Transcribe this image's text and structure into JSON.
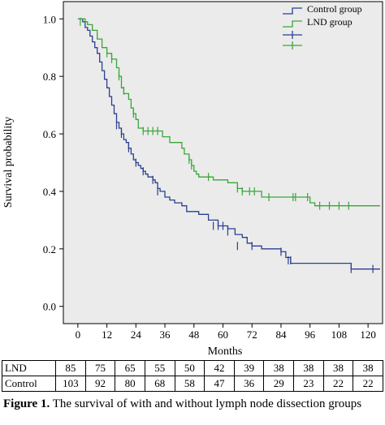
{
  "chart_data": {
    "type": "line",
    "step": true,
    "ylabel": "Survival probability",
    "xlabel": "Months",
    "xlim": [
      -6,
      126
    ],
    "ylim": [
      -0.06,
      1.06
    ],
    "xticks": [
      0,
      12,
      24,
      36,
      48,
      60,
      72,
      84,
      96,
      108,
      120
    ],
    "yticks": [
      0.0,
      0.2,
      0.4,
      0.6,
      0.8,
      1.0
    ],
    "ytick_labels": [
      "0.0",
      "0.2",
      "0.4",
      "0.6",
      "0.8",
      "1.0"
    ],
    "legend_position": "top-right",
    "series": [
      {
        "name": "Control group",
        "color": "#2b3f8f",
        "points": [
          [
            0,
            1.0
          ],
          [
            2,
            0.99
          ],
          [
            3,
            0.97
          ],
          [
            4,
            0.96
          ],
          [
            5,
            0.94
          ],
          [
            6,
            0.92
          ],
          [
            7,
            0.9
          ],
          [
            8,
            0.88
          ],
          [
            9,
            0.85
          ],
          [
            10,
            0.82
          ],
          [
            11,
            0.79
          ],
          [
            12,
            0.76
          ],
          [
            13,
            0.73
          ],
          [
            14,
            0.7
          ],
          [
            15,
            0.67
          ],
          [
            16,
            0.64
          ],
          [
            17,
            0.62
          ],
          [
            18,
            0.6
          ],
          [
            19,
            0.58
          ],
          [
            20,
            0.57
          ],
          [
            21,
            0.55
          ],
          [
            22,
            0.53
          ],
          [
            23,
            0.51
          ],
          [
            24,
            0.5
          ],
          [
            25,
            0.49
          ],
          [
            26,
            0.48
          ],
          [
            27,
            0.47
          ],
          [
            28,
            0.46
          ],
          [
            29,
            0.45
          ],
          [
            31,
            0.44
          ],
          [
            32,
            0.43
          ],
          [
            33,
            0.41
          ],
          [
            34,
            0.4
          ],
          [
            36,
            0.38
          ],
          [
            38,
            0.37
          ],
          [
            40,
            0.36
          ],
          [
            43,
            0.35
          ],
          [
            45,
            0.33
          ],
          [
            48,
            0.33
          ],
          [
            50,
            0.32
          ],
          [
            54,
            0.3
          ],
          [
            58,
            0.28
          ],
          [
            62,
            0.27
          ],
          [
            65,
            0.25
          ],
          [
            68,
            0.24
          ],
          [
            70,
            0.22
          ],
          [
            72,
            0.21
          ],
          [
            76,
            0.2
          ],
          [
            80,
            0.2
          ],
          [
            84,
            0.19
          ],
          [
            86,
            0.17
          ],
          [
            88,
            0.15
          ],
          [
            98,
            0.15
          ],
          [
            113,
            0.13
          ],
          [
            125,
            0.13
          ]
        ],
        "censored": [
          [
            16,
            0.63
          ],
          [
            18,
            0.6
          ],
          [
            21,
            0.55
          ],
          [
            24,
            0.5
          ],
          [
            27,
            0.47
          ],
          [
            31,
            0.44
          ],
          [
            33,
            0.4
          ],
          [
            56,
            0.28
          ],
          [
            58,
            0.28
          ],
          [
            60,
            0.28
          ],
          [
            62,
            0.26
          ],
          [
            66,
            0.21
          ],
          [
            72,
            0.21
          ],
          [
            84,
            0.19
          ],
          [
            87,
            0.16
          ],
          [
            88,
            0.16
          ],
          [
            113,
            0.13
          ],
          [
            122,
            0.13
          ]
        ]
      },
      {
        "name": "LND group",
        "color": "#3aa63a",
        "points": [
          [
            0,
            1.0
          ],
          [
            3,
            0.99
          ],
          [
            4,
            0.98
          ],
          [
            6,
            0.96
          ],
          [
            8,
            0.93
          ],
          [
            10,
            0.9
          ],
          [
            12,
            0.88
          ],
          [
            14,
            0.86
          ],
          [
            16,
            0.83
          ],
          [
            17,
            0.8
          ],
          [
            18,
            0.76
          ],
          [
            19,
            0.74
          ],
          [
            21,
            0.72
          ],
          [
            22,
            0.69
          ],
          [
            23,
            0.67
          ],
          [
            24,
            0.65
          ],
          [
            25,
            0.62
          ],
          [
            27,
            0.61
          ],
          [
            35,
            0.59
          ],
          [
            38,
            0.57
          ],
          [
            43,
            0.55
          ],
          [
            44,
            0.53
          ],
          [
            46,
            0.51
          ],
          [
            47,
            0.49
          ],
          [
            48,
            0.47
          ],
          [
            49,
            0.46
          ],
          [
            50,
            0.45
          ],
          [
            56,
            0.44
          ],
          [
            62,
            0.43
          ],
          [
            66,
            0.41
          ],
          [
            68,
            0.4
          ],
          [
            76,
            0.38
          ],
          [
            96,
            0.36
          ],
          [
            98,
            0.35
          ],
          [
            125,
            0.35
          ]
        ],
        "censored": [
          [
            1,
            0.99
          ],
          [
            12,
            0.88
          ],
          [
            14,
            0.86
          ],
          [
            17,
            0.8
          ],
          [
            19,
            0.75
          ],
          [
            23,
            0.67
          ],
          [
            27,
            0.61
          ],
          [
            29,
            0.61
          ],
          [
            31,
            0.61
          ],
          [
            33,
            0.61
          ],
          [
            46,
            0.51
          ],
          [
            47,
            0.49
          ],
          [
            54,
            0.45
          ],
          [
            66,
            0.41
          ],
          [
            68,
            0.4
          ],
          [
            71,
            0.4
          ],
          [
            73,
            0.4
          ],
          [
            79,
            0.38
          ],
          [
            89,
            0.38
          ],
          [
            90,
            0.38
          ],
          [
            95,
            0.38
          ],
          [
            100,
            0.35
          ],
          [
            104,
            0.35
          ],
          [
            108,
            0.35
          ],
          [
            112,
            0.35
          ]
        ]
      }
    ]
  },
  "risk_table": {
    "rows": [
      {
        "label": "LND",
        "values": [
          "85",
          "75",
          "65",
          "55",
          "50",
          "42",
          "39",
          "38",
          "38",
          "38",
          "38"
        ]
      },
      {
        "label": "Control",
        "values": [
          "103",
          "92",
          "80",
          "68",
          "58",
          "47",
          "36",
          "29",
          "23",
          "22",
          "22"
        ]
      }
    ]
  },
  "caption": {
    "label": "Figure 1.",
    "text": " The survival of with and without lymph node dissection groups"
  }
}
